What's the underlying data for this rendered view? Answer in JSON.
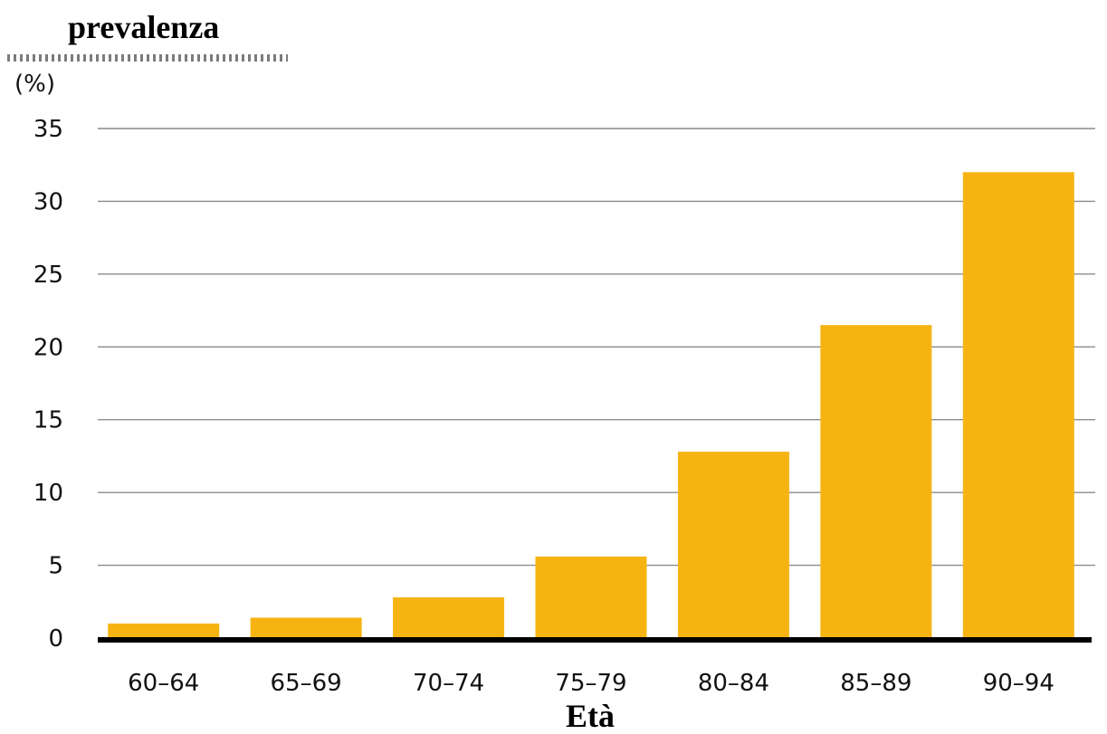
{
  "chart_data": {
    "type": "bar",
    "title": "prevalenza",
    "unit_label": "(%)",
    "xlabel": "Età",
    "ylabel": "",
    "categories": [
      "60–64",
      "65–69",
      "70–74",
      "75–79",
      "80–84",
      "85–89",
      "90–94"
    ],
    "values": [
      1.0,
      1.4,
      2.8,
      5.6,
      12.8,
      21.5,
      32.0
    ],
    "ylim": [
      0,
      35
    ],
    "y_ticks": [
      0,
      5,
      10,
      15,
      20,
      25,
      30,
      35
    ],
    "grid": true,
    "legend": "none",
    "bar_color": "#F6B413",
    "axis_color": "#000000",
    "grid_color": "#8c8c8c"
  }
}
